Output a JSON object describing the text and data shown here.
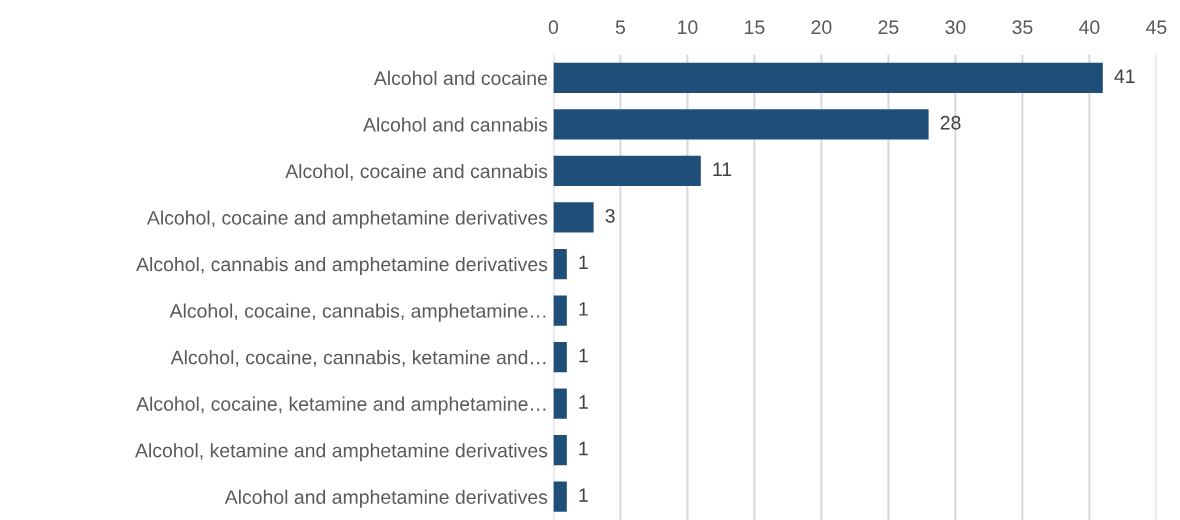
{
  "chart_data": {
    "type": "bar",
    "orientation": "horizontal",
    "categories": [
      "Alcohol and cocaine",
      "Alcohol and cannabis",
      "Alcohol, cocaine and cannabis",
      "Alcohol, cocaine and amphetamine derivatives",
      "Alcohol, cannabis and amphetamine derivatives",
      "Alcohol, cocaine, cannabis, amphetamine…",
      "Alcohol, cocaine, cannabis, ketamine and…",
      "Alcohol, cocaine, ketamine and amphetamine…",
      "Alcohol, ketamine and amphetamine derivatives",
      "Alcohol and amphetamine derivatives"
    ],
    "values": [
      41,
      28,
      11,
      3,
      1,
      1,
      1,
      1,
      1,
      1
    ],
    "color": "#1f4e79",
    "xlim": [
      0,
      45
    ],
    "xticks": [
      0,
      5,
      10,
      15,
      20,
      25,
      30,
      35,
      40,
      45
    ],
    "grid": "x",
    "data_labels": true
  }
}
